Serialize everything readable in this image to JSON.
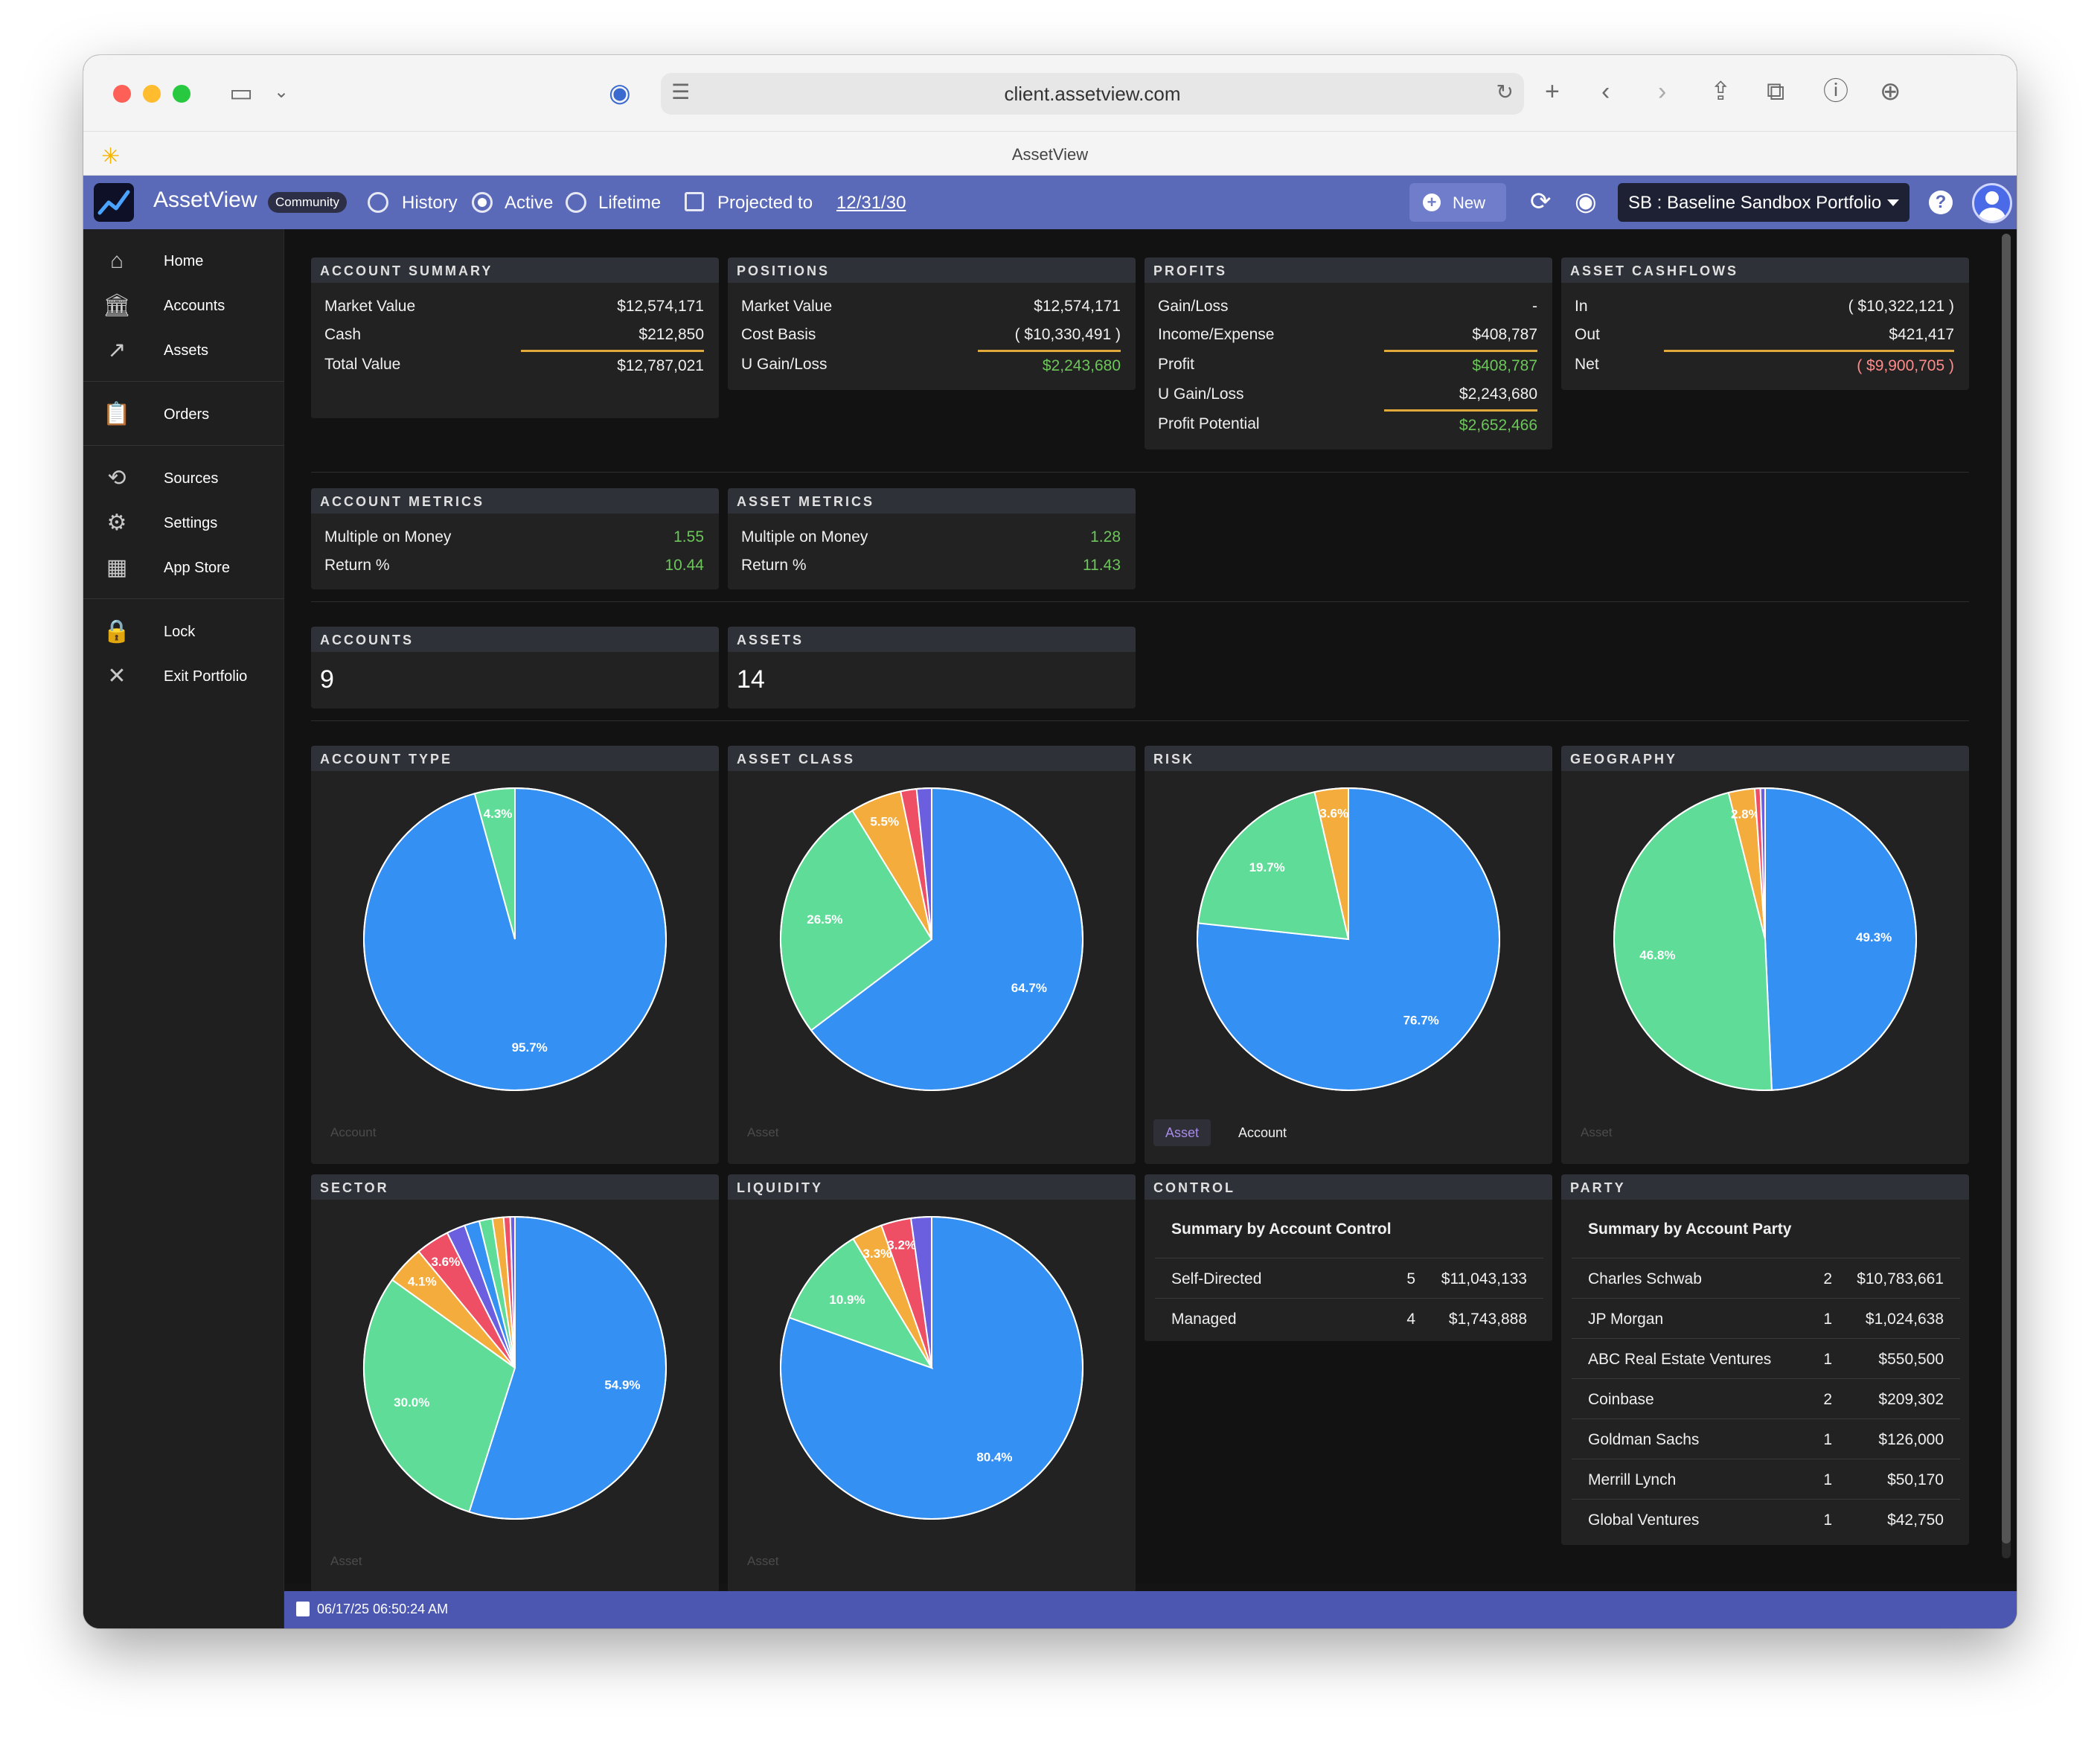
{
  "browser": {
    "url": "client.assetview.com",
    "tab_title": "AssetView"
  },
  "appbar": {
    "brand": "AssetView",
    "badge": "Community",
    "modes": [
      "History",
      "Active",
      "Lifetime"
    ],
    "selected_mode": "Active",
    "projected_label": "Projected to",
    "projected_date": "12/31/30",
    "new_label": "New",
    "portfolio": "SB : Baseline Sandbox Portfolio"
  },
  "sidebar": {
    "items": [
      {
        "label": "Home",
        "icon": "home-icon"
      },
      {
        "label": "Accounts",
        "icon": "bank-icon"
      },
      {
        "label": "Assets",
        "icon": "trend-icon"
      },
      {
        "label": "Orders",
        "icon": "clipboard-icon"
      },
      {
        "label": "Sources",
        "icon": "sync-icon"
      },
      {
        "label": "Settings",
        "icon": "gear-icon"
      },
      {
        "label": "App Store",
        "icon": "widgets-icon"
      },
      {
        "label": "Lock",
        "icon": "lock-icon"
      },
      {
        "label": "Exit Portfolio",
        "icon": "close-icon"
      }
    ]
  },
  "summary": {
    "account_summary": {
      "title": "ACCOUNT SUMMARY",
      "rows": [
        {
          "label": "Market Value",
          "value": "$12,574,171"
        },
        {
          "label": "Cash",
          "value": "$212,850"
        },
        {
          "label": "Total Value",
          "value": "$12,787,021"
        }
      ]
    },
    "positions": {
      "title": "POSITIONS",
      "rows": [
        {
          "label": "Market Value",
          "value": "$12,574,171"
        },
        {
          "label": "Cost Basis",
          "value": "( $10,330,491 )"
        },
        {
          "label": "U Gain/Loss",
          "value": "$2,243,680"
        }
      ]
    },
    "profits": {
      "title": "PROFITS",
      "rows": [
        {
          "label": "Gain/Loss",
          "value": "-"
        },
        {
          "label": "Income/Expense",
          "value": "$408,787"
        },
        {
          "label": "Profit",
          "value": "$408,787"
        },
        {
          "label": "U Gain/Loss",
          "value": "$2,243,680"
        },
        {
          "label": "Profit Potential",
          "value": "$2,652,466"
        }
      ]
    },
    "asset_cashflows": {
      "title": "ASSET CASHFLOWS",
      "rows": [
        {
          "label": "In",
          "value": "( $10,322,121 )"
        },
        {
          "label": "Out",
          "value": "$421,417"
        },
        {
          "label": "Net",
          "value": "( $9,900,705 )"
        }
      ]
    }
  },
  "metrics": {
    "account_metrics": {
      "title": "ACCOUNT METRICS",
      "rows": [
        {
          "label": "Multiple on Money",
          "value": "1.55"
        },
        {
          "label": "Return %",
          "value": "10.44"
        }
      ]
    },
    "asset_metrics": {
      "title": "ASSET METRICS",
      "rows": [
        {
          "label": "Multiple on Money",
          "value": "1.28"
        },
        {
          "label": "Return %",
          "value": "11.43"
        }
      ]
    }
  },
  "counts": {
    "accounts": {
      "title": "ACCOUNTS",
      "value": "9"
    },
    "assets": {
      "title": "ASSETS",
      "value": "14"
    }
  },
  "charts": {
    "account_type": {
      "title": "ACCOUNT TYPE",
      "footer": "Account",
      "slices": [
        {
          "value": 95.7,
          "label": "95.7%",
          "color": "#3590f3"
        },
        {
          "value": 4.3,
          "label": "4.3%",
          "color": "#5fdc97"
        }
      ]
    },
    "asset_class": {
      "title": "ASSET CLASS",
      "footer": "Asset",
      "slices": [
        {
          "value": 64.7,
          "label": "64.7%",
          "color": "#3590f3"
        },
        {
          "value": 26.5,
          "label": "26.5%",
          "color": "#5fdc97"
        },
        {
          "value": 5.5,
          "label": "5.5%",
          "color": "#f4ad3d"
        },
        {
          "value": 1.7,
          "label": "",
          "color": "#ef4f64"
        },
        {
          "value": 1.6,
          "label": "",
          "color": "#6b5fe0"
        }
      ]
    },
    "risk": {
      "title": "RISK",
      "toggle_on": "Asset",
      "toggle_off": "Account",
      "slices": [
        {
          "value": 76.7,
          "label": "76.7%",
          "color": "#3590f3"
        },
        {
          "value": 19.7,
          "label": "19.7%",
          "color": "#5fdc97"
        },
        {
          "value": 3.6,
          "label": "3.6%",
          "color": "#f4ad3d"
        }
      ]
    },
    "geography": {
      "title": "GEOGRAPHY",
      "footer": "Asset",
      "slices": [
        {
          "value": 49.3,
          "label": "49.3%",
          "color": "#3590f3"
        },
        {
          "value": 46.8,
          "label": "46.8%",
          "color": "#5fdc97"
        },
        {
          "value": 2.8,
          "label": "2.8%",
          "color": "#f4ad3d"
        },
        {
          "value": 0.6,
          "label": "",
          "color": "#ef4f64"
        },
        {
          "value": 0.5,
          "label": "",
          "color": "#6b5fe0"
        }
      ]
    },
    "sector": {
      "title": "SECTOR",
      "footer": "Asset",
      "slices": [
        {
          "value": 54.9,
          "label": "54.9%",
          "color": "#3590f3"
        },
        {
          "value": 30.0,
          "label": "30.0%",
          "color": "#5fdc97"
        },
        {
          "value": 4.1,
          "label": "4.1%",
          "color": "#f4ad3d"
        },
        {
          "value": 3.6,
          "label": "3.6%",
          "color": "#ef4f64"
        },
        {
          "value": 2.0,
          "label": "",
          "color": "#6b5fe0"
        },
        {
          "value": 1.6,
          "label": "",
          "color": "#3590f3"
        },
        {
          "value": 1.4,
          "label": "",
          "color": "#5fdc97"
        },
        {
          "value": 1.2,
          "label": "",
          "color": "#f4ad3d"
        },
        {
          "value": 0.7,
          "label": "",
          "color": "#ef4f64"
        },
        {
          "value": 0.5,
          "label": "",
          "color": "#6b5fe0"
        }
      ]
    },
    "liquidity": {
      "title": "LIQUIDITY",
      "footer": "Asset",
      "slices": [
        {
          "value": 80.4,
          "label": "80.4%",
          "color": "#3590f3"
        },
        {
          "value": 10.9,
          "label": "10.9%",
          "color": "#5fdc97"
        },
        {
          "value": 3.3,
          "label": "3.3%",
          "color": "#f4ad3d"
        },
        {
          "value": 3.2,
          "label": "3.2%",
          "color": "#ef4f64"
        },
        {
          "value": 2.2,
          "label": "",
          "color": "#6b5fe0"
        }
      ]
    }
  },
  "control": {
    "title": "CONTROL",
    "summary_title": "Summary by Account Control",
    "rows": [
      {
        "name": "Self-Directed",
        "count": "5",
        "amount": "$11,043,133"
      },
      {
        "name": "Managed",
        "count": "4",
        "amount": "$1,743,888"
      }
    ]
  },
  "party": {
    "title": "PARTY",
    "summary_title": "Summary by Account Party",
    "rows": [
      {
        "name": "Charles Schwab",
        "count": "2",
        "amount": "$10,783,661"
      },
      {
        "name": "JP Morgan",
        "count": "1",
        "amount": "$1,024,638"
      },
      {
        "name": "ABC Real Estate Ventures",
        "count": "1",
        "amount": "$550,500"
      },
      {
        "name": "Coinbase",
        "count": "2",
        "amount": "$209,302"
      },
      {
        "name": "Goldman Sachs",
        "count": "1",
        "amount": "$126,000"
      },
      {
        "name": "Merrill Lynch",
        "count": "1",
        "amount": "$50,170"
      },
      {
        "name": "Global Ventures",
        "count": "1",
        "amount": "$42,750"
      }
    ]
  },
  "footer": {
    "timestamp": "06/17/25 06:50:24 AM"
  }
}
